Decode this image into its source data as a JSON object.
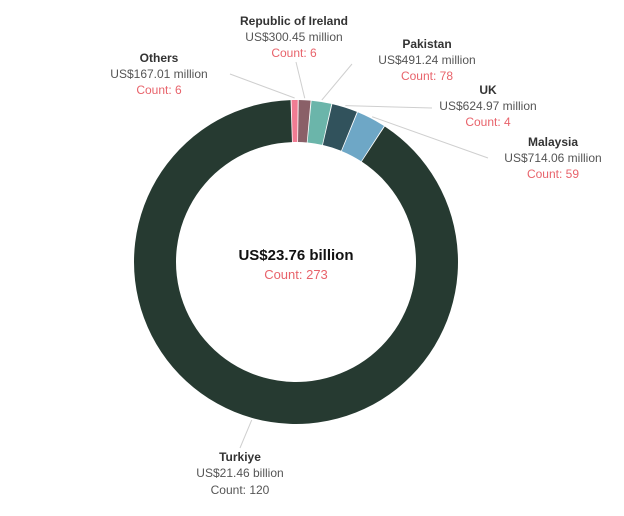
{
  "chart_data": {
    "type": "pie",
    "donut": true,
    "total_label": "US$23.76 billion",
    "total_count_label": "Count: 273",
    "slices": [
      {
        "name": "Others",
        "value_label": "US$167.01 million",
        "count_label": "Count: 6",
        "value": 167.01,
        "color": "#f07c93"
      },
      {
        "name": "Republic of Ireland",
        "value_label": "US$300.45 million",
        "count_label": "Count: 6",
        "value": 300.45,
        "color": "#8a6068"
      },
      {
        "name": "Pakistan",
        "value_label": "US$491.24 million",
        "count_label": "Count: 78",
        "value": 491.24,
        "color": "#6bb5aa"
      },
      {
        "name": "UK",
        "value_label": "US$624.97 million",
        "count_label": "Count: 4",
        "value": 624.97,
        "color": "#31525c"
      },
      {
        "name": "Malaysia",
        "value_label": "US$714.06 million",
        "count_label": "Count: 59",
        "value": 714.06,
        "color": "#6ea7c6"
      },
      {
        "name": "Turkiye",
        "value_label": "US$21.46 billion",
        "count_label": "Count: 120",
        "value": 21460,
        "color": "#263a31"
      }
    ],
    "count_color": "#e8636b",
    "turkiye_count_color": "#555555"
  }
}
